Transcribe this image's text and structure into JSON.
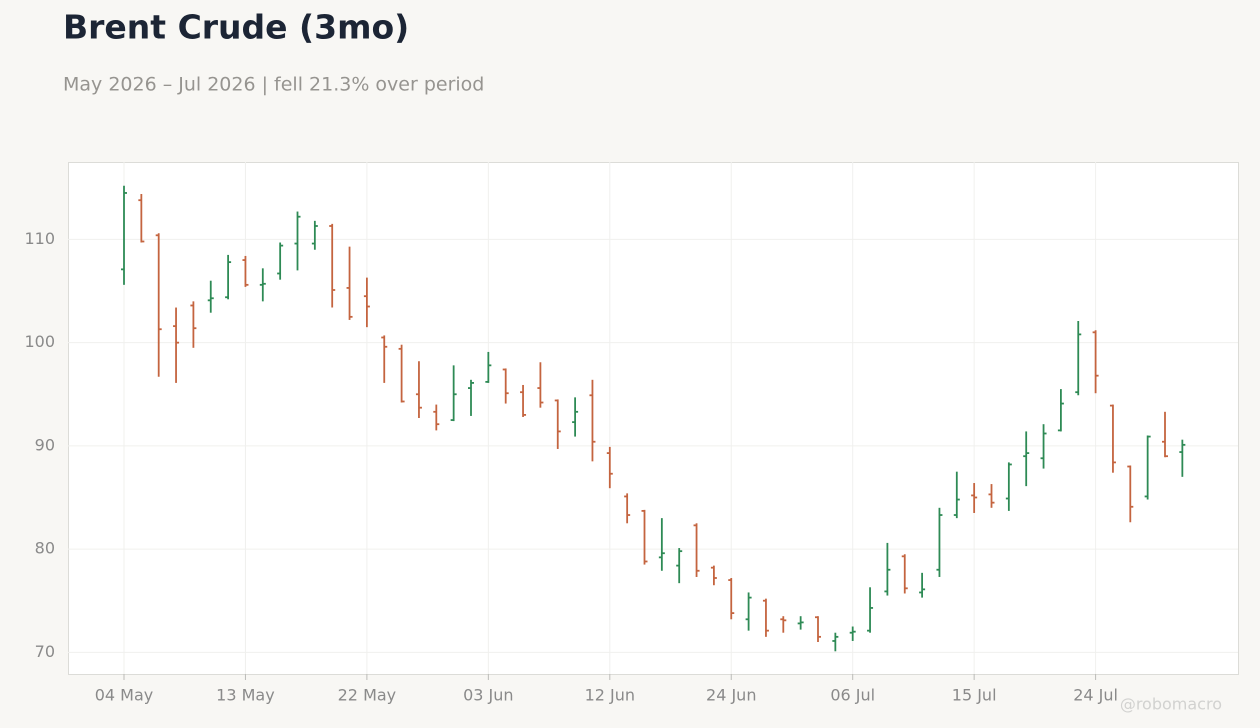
{
  "chart_data": {
    "type": "ohlc",
    "title": "Brent Crude (3mo)",
    "subtitle": "May 2026 – Jul 2026 | fell 21.3% over period",
    "categories": [
      "04 May",
      null,
      null,
      null,
      null,
      null,
      null,
      "13 May",
      null,
      null,
      null,
      null,
      null,
      null,
      "22 May",
      null,
      null,
      null,
      null,
      null,
      null,
      "03 Jun",
      null,
      null,
      null,
      null,
      null,
      null,
      "12 Jun",
      null,
      null,
      null,
      null,
      null,
      null,
      "24 Jun",
      null,
      null,
      null,
      null,
      null,
      null,
      "06 Jul",
      null,
      null,
      null,
      null,
      null,
      null,
      "15 Jul",
      null,
      null,
      null,
      null,
      null,
      null,
      "24 Jul",
      null,
      null,
      null,
      null,
      null
    ],
    "open": [
      107.1,
      113.8,
      110.4,
      101.6,
      103.6,
      104.1,
      104.4,
      108.0,
      105.6,
      106.7,
      109.6,
      109.6,
      111.3,
      105.3,
      104.5,
      100.5,
      99.4,
      95.0,
      93.3,
      92.5,
      95.6,
      96.2,
      97.4,
      95.2,
      95.6,
      94.4,
      92.3,
      94.9,
      89.3,
      85.1,
      83.7,
      79.2,
      78.4,
      82.3,
      78.2,
      77.0,
      73.2,
      75.0,
      73.2,
      72.8,
      73.4,
      71.1,
      71.9,
      72.1,
      75.9,
      79.3,
      75.8,
      78.0,
      83.3,
      85.2,
      85.3,
      84.9,
      89.0,
      88.8,
      91.5,
      95.2,
      101.0,
      93.9,
      88.0,
      85.1,
      90.4,
      89.4
    ],
    "high": [
      115.2,
      114.4,
      110.6,
      103.4,
      104.0,
      106.0,
      108.5,
      108.4,
      107.2,
      109.7,
      112.7,
      111.8,
      111.5,
      109.3,
      106.3,
      100.7,
      99.8,
      98.2,
      94.0,
      97.8,
      96.4,
      99.1,
      97.5,
      95.9,
      98.1,
      94.5,
      94.7,
      96.4,
      89.9,
      85.4,
      83.8,
      83.0,
      80.1,
      82.5,
      78.4,
      77.2,
      75.8,
      75.2,
      73.5,
      73.5,
      73.5,
      71.9,
      72.5,
      76.3,
      80.6,
      79.5,
      77.7,
      84.0,
      87.5,
      86.4,
      86.3,
      88.4,
      91.4,
      92.1,
      95.5,
      102.1,
      101.2,
      94.0,
      88.1,
      91.0,
      93.3,
      90.6
    ],
    "low": [
      105.6,
      109.7,
      96.7,
      96.1,
      99.5,
      102.9,
      104.2,
      105.4,
      104.0,
      106.1,
      107.0,
      109.0,
      103.4,
      102.2,
      101.5,
      96.1,
      94.2,
      92.7,
      91.5,
      92.4,
      92.9,
      96.1,
      94.1,
      92.8,
      93.7,
      89.7,
      90.9,
      88.5,
      85.9,
      82.5,
      78.5,
      77.9,
      76.7,
      77.3,
      76.5,
      73.2,
      72.1,
      71.5,
      71.9,
      72.2,
      71.0,
      70.1,
      71.1,
      71.9,
      75.5,
      75.7,
      75.3,
      77.3,
      83.0,
      83.5,
      84.0,
      83.7,
      86.1,
      87.8,
      91.4,
      94.9,
      95.1,
      87.4,
      82.6,
      84.8,
      88.9,
      87.0
    ],
    "close": [
      114.5,
      109.8,
      101.3,
      100.0,
      101.4,
      104.3,
      107.8,
      105.6,
      105.7,
      109.4,
      112.2,
      111.3,
      105.1,
      102.5,
      103.5,
      99.6,
      94.3,
      93.7,
      92.1,
      95.0,
      96.1,
      97.8,
      95.1,
      93.0,
      94.2,
      91.4,
      93.3,
      90.4,
      87.3,
      83.3,
      78.8,
      79.6,
      79.8,
      77.9,
      77.2,
      73.8,
      75.3,
      72.1,
      73.1,
      72.9,
      71.5,
      71.5,
      72.0,
      74.3,
      78.0,
      76.2,
      76.1,
      83.3,
      84.8,
      85.0,
      84.5,
      88.2,
      89.3,
      91.2,
      94.1,
      100.8,
      96.8,
      88.4,
      84.1,
      90.9,
      89.0,
      90.1
    ],
    "up_color": "#2e8a55",
    "down_color": "#c4643f",
    "ylim": [
      67.9,
      117.5
    ],
    "yticks": [
      70,
      80,
      90,
      100,
      110
    ],
    "grid": true,
    "watermark": "@robomacro"
  }
}
